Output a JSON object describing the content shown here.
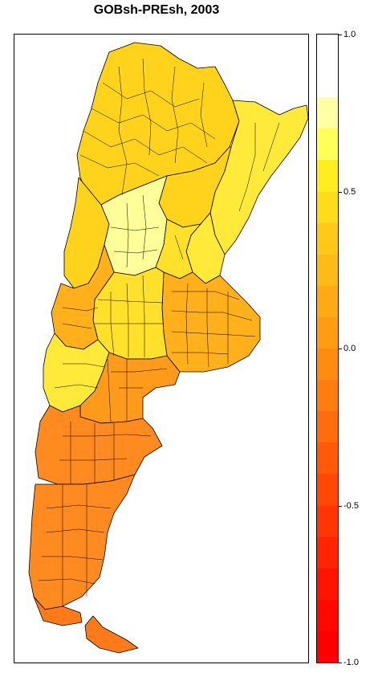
{
  "title": "GOBsh-PREsh, 2003",
  "legend": {
    "min": -1.0,
    "max": 1.0,
    "ticks": [
      "1.0",
      "0.5",
      "0.0",
      "-0.5",
      "-1.0"
    ],
    "tick_values": [
      1.0,
      0.5,
      0.0,
      -0.5,
      -1.0
    ],
    "bands": [
      {
        "from": 0.9,
        "to": 1.0,
        "color": "#ffffff"
      },
      {
        "from": 0.8,
        "to": 0.9,
        "color": "#ffffff"
      },
      {
        "from": 0.7,
        "to": 0.8,
        "color": "#ffffa6"
      },
      {
        "from": 0.6,
        "to": 0.7,
        "color": "#ffff5a"
      },
      {
        "from": 0.5,
        "to": 0.6,
        "color": "#ffed1f"
      },
      {
        "from": 0.4,
        "to": 0.5,
        "color": "#ffdc1a"
      },
      {
        "from": 0.3,
        "to": 0.4,
        "color": "#ffc919"
      },
      {
        "from": 0.2,
        "to": 0.3,
        "color": "#ffba18"
      },
      {
        "from": 0.1,
        "to": 0.2,
        "color": "#ffaa15"
      },
      {
        "from": 0.0,
        "to": 0.1,
        "color": "#ff9c12"
      },
      {
        "from": -0.1,
        "to": 0.0,
        "color": "#ff8c10"
      },
      {
        "from": -0.2,
        "to": -0.1,
        "color": "#ff7d0e"
      },
      {
        "from": -0.3,
        "to": -0.2,
        "color": "#ff6c0b"
      },
      {
        "from": -0.4,
        "to": -0.3,
        "color": "#ff5a08"
      },
      {
        "from": -0.5,
        "to": -0.4,
        "color": "#ff4806"
      },
      {
        "from": -0.6,
        "to": -0.5,
        "color": "#ff3604"
      },
      {
        "from": -0.7,
        "to": -0.6,
        "color": "#ff2402"
      },
      {
        "from": -0.8,
        "to": -0.7,
        "color": "#ff1401"
      },
      {
        "from": -0.9,
        "to": -0.8,
        "color": "#ff0800"
      },
      {
        "from": -1.0,
        "to": -0.9,
        "color": "#ff0000"
      }
    ]
  },
  "map": {
    "region": "Argentina",
    "colors": {
      "north_yellow": "#ffd21c",
      "north_light": "#ffea3a",
      "center_pale": "#ffff9a",
      "pampas_orange": "#ffb01a",
      "center_yellow": "#ffe02a",
      "patagonia_orange": "#ff9a1a",
      "south_orange": "#ff8a20",
      "tierra_orange": "#ff7a18",
      "border": "#000000"
    }
  }
}
